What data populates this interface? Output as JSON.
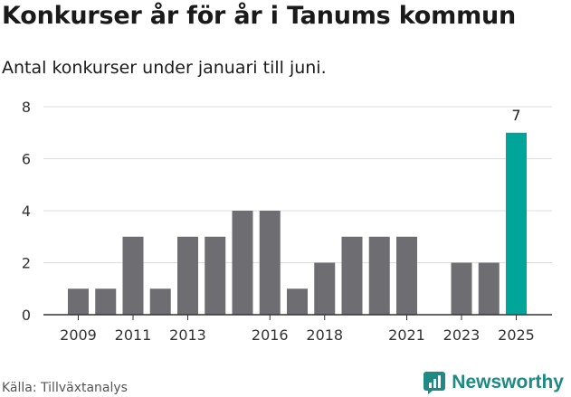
{
  "title": "Konkurser år för år i Tanums kommun",
  "subtitle": "Antal konkurser under januari till juni.",
  "source": "Källa: Tillväxtanalys",
  "brand": {
    "name": "Newsworthy",
    "icon": "newsworthy-logo-icon",
    "color": "#1e8a84"
  },
  "colors": {
    "bar": "#6d6d72",
    "highlight": "#00a599",
    "grid": "#dddddd",
    "axis": "#333333"
  },
  "chart_data": {
    "type": "bar",
    "x": [
      2009,
      2010,
      2011,
      2012,
      2013,
      2014,
      2015,
      2016,
      2017,
      2018,
      2019,
      2020,
      2021,
      2022,
      2023,
      2024,
      2025
    ],
    "values": [
      1,
      1,
      3,
      1,
      3,
      3,
      4,
      4,
      1,
      2,
      3,
      3,
      3,
      0,
      2,
      2,
      7
    ],
    "x_tick_labels": [
      "2009",
      "2011",
      "2013",
      "2016",
      "2018",
      "2021",
      "2023",
      "2025"
    ],
    "y_ticks": [
      0,
      2,
      4,
      6,
      8
    ],
    "ylim": [
      0,
      8
    ],
    "highlight": {
      "x": 2025,
      "label": "7"
    },
    "grid": true,
    "xlabel": "",
    "ylabel": ""
  }
}
